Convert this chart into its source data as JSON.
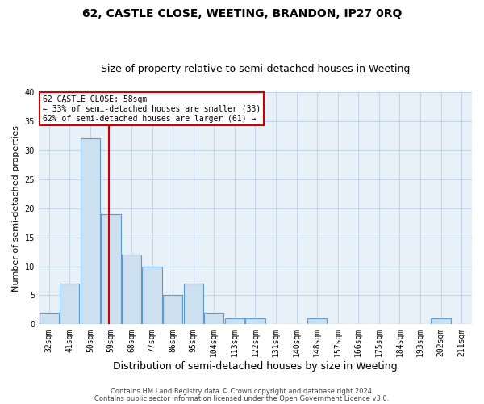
{
  "title": "62, CASTLE CLOSE, WEETING, BRANDON, IP27 0RQ",
  "subtitle": "Size of property relative to semi-detached houses in Weeting",
  "xlabel": "Distribution of semi-detached houses by size in Weeting",
  "ylabel": "Number of semi-detached properties",
  "footer1": "Contains HM Land Registry data © Crown copyright and database right 2024.",
  "footer2": "Contains public sector information licensed under the Open Government Licence v3.0.",
  "categories": [
    "32sqm",
    "41sqm",
    "50sqm",
    "59sqm",
    "68sqm",
    "77sqm",
    "86sqm",
    "95sqm",
    "104sqm",
    "113sqm",
    "122sqm",
    "131sqm",
    "140sqm",
    "148sqm",
    "157sqm",
    "166sqm",
    "175sqm",
    "184sqm",
    "193sqm",
    "202sqm",
    "211sqm"
  ],
  "values": [
    2,
    7,
    32,
    19,
    12,
    10,
    5,
    7,
    2,
    1,
    1,
    0,
    0,
    1,
    0,
    0,
    0,
    0,
    0,
    1,
    0
  ],
  "bar_color": "#cce0f0",
  "bar_edge_color": "#5b9bd5",
  "property_line_color": "#cc0000",
  "property_line_bar_index": 2.89,
  "annotation_line1": "62 CASTLE CLOSE: 58sqm",
  "annotation_line2": "← 33% of semi-detached houses are smaller (33)",
  "annotation_line3": "62% of semi-detached houses are larger (61) →",
  "annotation_box_facecolor": "#ffffff",
  "annotation_box_edgecolor": "#cc0000",
  "ylim": [
    0,
    40
  ],
  "yticks": [
    0,
    5,
    10,
    15,
    20,
    25,
    30,
    35,
    40
  ],
  "grid_color": "#b8cfe8",
  "background_color": "#e8f0f8",
  "title_fontsize": 10,
  "subtitle_fontsize": 9,
  "ylabel_fontsize": 8,
  "xlabel_fontsize": 9,
  "tick_fontsize": 7,
  "annotation_fontsize": 7,
  "footer_fontsize": 6
}
